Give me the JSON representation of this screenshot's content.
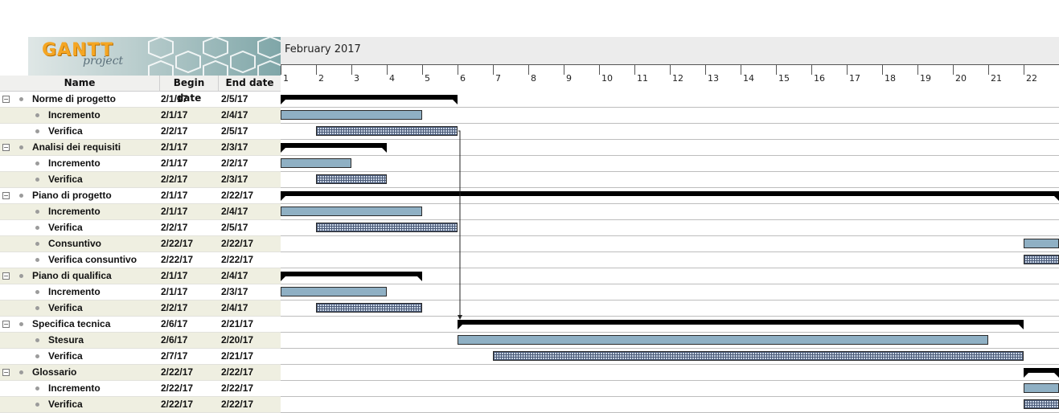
{
  "logo": {
    "text_main": "GANTT",
    "text_sub": "project"
  },
  "timeline": {
    "month_label": "February 2017",
    "days": [
      "1",
      "2",
      "3",
      "4",
      "5",
      "6",
      "7",
      "8",
      "9",
      "10",
      "11",
      "12",
      "13",
      "14",
      "15",
      "16",
      "17",
      "18",
      "19",
      "20",
      "21",
      "22"
    ]
  },
  "columns": {
    "name": "Name",
    "begin": "Begin date",
    "end": "End date"
  },
  "colors": {
    "task_bar": "#8fb0c4",
    "summary_bar": "#000000",
    "row_alt": "#efefe1"
  },
  "tasks": [
    {
      "name": "Norme di progetto",
      "begin": "2/1/17",
      "end": "2/5/17",
      "level": 0,
      "type": "summary",
      "start_day": 1,
      "end_day": 6
    },
    {
      "name": "Incremento",
      "begin": "2/1/17",
      "end": "2/4/17",
      "level": 1,
      "type": "task",
      "start_day": 1,
      "end_day": 5
    },
    {
      "name": "Verifica",
      "begin": "2/2/17",
      "end": "2/5/17",
      "level": 1,
      "type": "hatch",
      "start_day": 2,
      "end_day": 6
    },
    {
      "name": "Analisi dei requisiti",
      "begin": "2/1/17",
      "end": "2/3/17",
      "level": 0,
      "type": "summary",
      "start_day": 1,
      "end_day": 4
    },
    {
      "name": "Incremento",
      "begin": "2/1/17",
      "end": "2/2/17",
      "level": 1,
      "type": "task",
      "start_day": 1,
      "end_day": 3
    },
    {
      "name": "Verifica",
      "begin": "2/2/17",
      "end": "2/3/17",
      "level": 1,
      "type": "hatch",
      "start_day": 2,
      "end_day": 4
    },
    {
      "name": "Piano di progetto",
      "begin": "2/1/17",
      "end": "2/22/17",
      "level": 0,
      "type": "summary",
      "start_day": 1,
      "end_day": 23
    },
    {
      "name": "Incremento",
      "begin": "2/1/17",
      "end": "2/4/17",
      "level": 1,
      "type": "task",
      "start_day": 1,
      "end_day": 5
    },
    {
      "name": "Verifica",
      "begin": "2/2/17",
      "end": "2/5/17",
      "level": 1,
      "type": "hatch",
      "start_day": 2,
      "end_day": 6
    },
    {
      "name": "Consuntivo",
      "begin": "2/22/17",
      "end": "2/22/17",
      "level": 1,
      "type": "task",
      "start_day": 22,
      "end_day": 23
    },
    {
      "name": "Verifica consuntivo",
      "begin": "2/22/17",
      "end": "2/22/17",
      "level": 1,
      "type": "hatch",
      "start_day": 22,
      "end_day": 23
    },
    {
      "name": "Piano di qualifica",
      "begin": "2/1/17",
      "end": "2/4/17",
      "level": 0,
      "type": "summary",
      "start_day": 1,
      "end_day": 5
    },
    {
      "name": "Incremento",
      "begin": "2/1/17",
      "end": "2/3/17",
      "level": 1,
      "type": "task",
      "start_day": 1,
      "end_day": 4
    },
    {
      "name": "Verifica",
      "begin": "2/2/17",
      "end": "2/4/17",
      "level": 1,
      "type": "hatch",
      "start_day": 2,
      "end_day": 5
    },
    {
      "name": "Specifica tecnica",
      "begin": "2/6/17",
      "end": "2/21/17",
      "level": 0,
      "type": "summary",
      "start_day": 6,
      "end_day": 22
    },
    {
      "name": "Stesura",
      "begin": "2/6/17",
      "end": "2/20/17",
      "level": 1,
      "type": "task",
      "start_day": 6,
      "end_day": 21
    },
    {
      "name": "Verifica",
      "begin": "2/7/17",
      "end": "2/21/17",
      "level": 1,
      "type": "hatch",
      "start_day": 7,
      "end_day": 22
    },
    {
      "name": "Glossario",
      "begin": "2/22/17",
      "end": "2/22/17",
      "level": 0,
      "type": "summary",
      "start_day": 22,
      "end_day": 23
    },
    {
      "name": "Incremento",
      "begin": "2/22/17",
      "end": "2/22/17",
      "level": 1,
      "type": "task",
      "start_day": 22,
      "end_day": 23
    },
    {
      "name": "Verifica",
      "begin": "2/22/17",
      "end": "2/22/17",
      "level": 1,
      "type": "hatch",
      "start_day": 22,
      "end_day": 23
    }
  ]
}
